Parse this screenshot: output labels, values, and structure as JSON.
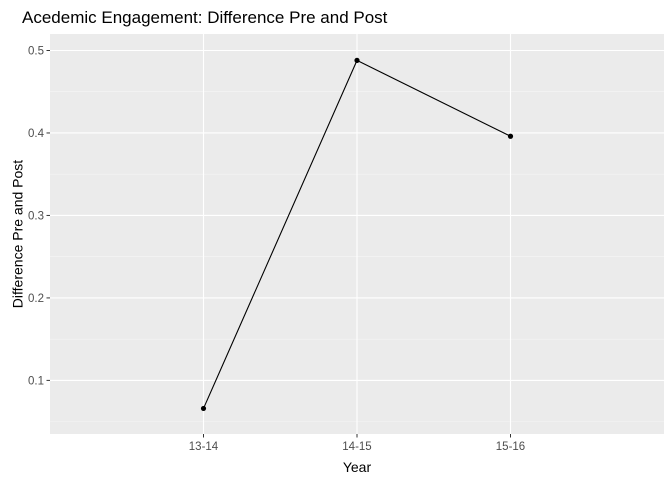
{
  "chart_data": {
    "type": "line",
    "title": "Acedemic Engagement: Difference Pre and Post",
    "xlabel": "Year",
    "ylabel": "Difference Pre and Post",
    "categories": [
      "13-14",
      "14-15",
      "15-16"
    ],
    "series": [
      {
        "values": [
          0.066,
          0.488,
          0.396
        ]
      }
    ],
    "ylim": [
      0.035,
      0.52
    ],
    "yticks": [
      0.1,
      0.2,
      0.3,
      0.4,
      0.5
    ],
    "ytick_labels": [
      "0.1",
      "0.2",
      "0.3",
      "0.4",
      "0.5"
    ],
    "grid": true,
    "legend": "none",
    "colors": {
      "panel_background": "#EBEBEB",
      "grid_major": "#FFFFFF",
      "grid_minor": "#F5F5F5",
      "line": "#000000",
      "point": "#000000",
      "tick_text": "#4D4D4D",
      "tick_mark": "#333333",
      "text": "#000000"
    }
  }
}
